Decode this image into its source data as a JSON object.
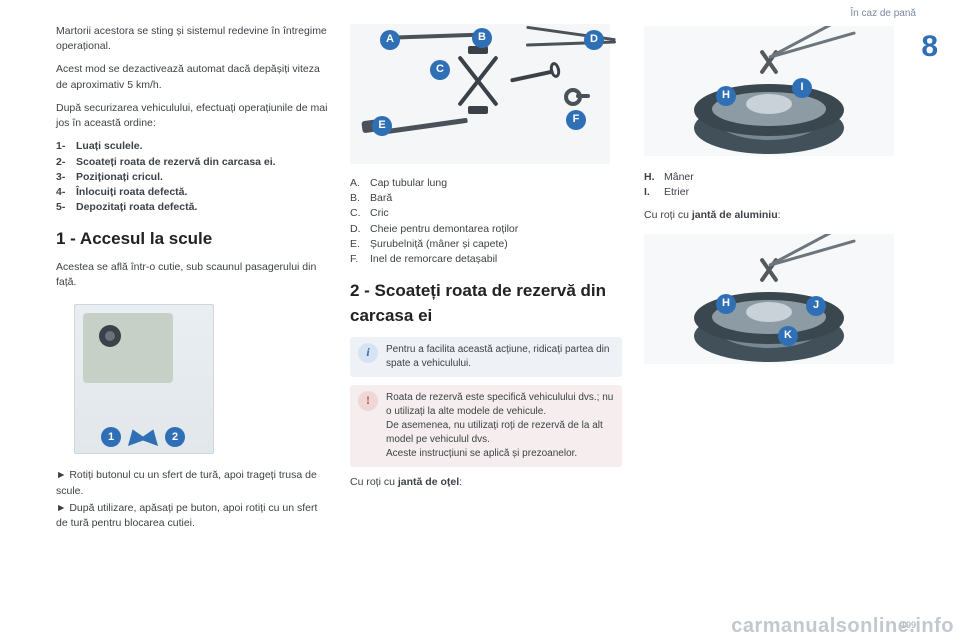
{
  "header": {
    "section": "În caz de pană"
  },
  "page_number_large": "8",
  "page_number_small": "199",
  "watermark": "carmanualsonline.info",
  "col1": {
    "p1": "Martorii acestora se sting și sistemul redevine în întregime operațional.",
    "p2": "Acest mod se dezactivează automat dacă depășiți viteza de aproximativ 5 km/h.",
    "p3": "După securizarea vehiculului, efectuați operațiunile de mai jos în această ordine:",
    "steps": [
      {
        "n": "1-",
        "t": "Luați sculele."
      },
      {
        "n": "2-",
        "t": "Scoateți roata de rezervă din carcasa ei."
      },
      {
        "n": "3-",
        "t": "Poziționați cricul."
      },
      {
        "n": "4-",
        "t": "Înlocuiți roata defectă."
      },
      {
        "n": "5-",
        "t": "Depozitați roata defectă."
      }
    ],
    "h1": "1 - Accesul la scule",
    "p4": "Acestea se află într-o cutie, sub scaunul pasagerului din față.",
    "illus": {
      "b1": "1",
      "b2": "2"
    },
    "b1": "Rotiți butonul cu un sfert de tură, apoi trageți trusa de scule.",
    "b2": "După utilizare, apăsați pe buton, apoi rotiți cu un sfert de tură pentru blocarea cutiei."
  },
  "col2": {
    "illus_labels": {
      "A": "A",
      "B": "B",
      "C": "C",
      "D": "D",
      "E": "E",
      "F": "F"
    },
    "list": [
      {
        "l": "A.",
        "t": "Cap tubular lung"
      },
      {
        "l": "B.",
        "t": "Bară"
      },
      {
        "l": "C.",
        "t": "Cric"
      },
      {
        "l": "D.",
        "t": "Cheie pentru demontarea roților"
      },
      {
        "l": "E.",
        "t": "Șurubelniță (mâner și capete)"
      },
      {
        "l": "F.",
        "t": "Inel de remorcare detașabil"
      }
    ],
    "h2": "2 - Scoateți roata de rezervă din carcasa ei",
    "info": "Pentru a facilita această acțiune, ridicați partea din spate a vehiculului.",
    "warn_l1": "Roata de rezervă este specifică vehiculului dvs.; nu o utilizați la alte modele de vehicule.",
    "warn_l2": "De asemenea, nu utilizați roți de rezervă de la alt model pe vehiculul dvs.",
    "warn_l3": "Aceste instrucțiuni se aplică și prezoanelor.",
    "p_after_pre": "Cu roți cu ",
    "p_after_bold": "jantă de oțel",
    "p_after_post": ":"
  },
  "col3": {
    "top_labels": {
      "H": "H",
      "I": "I"
    },
    "list_top": [
      {
        "l": "H.",
        "t": "Mâner"
      },
      {
        "l": "I.",
        "t": "Etrier"
      }
    ],
    "p_alu_pre": "Cu roți cu ",
    "p_alu_bold": "jantă de aluminiu",
    "p_alu_post": ":",
    "bottom_labels": {
      "H": "H",
      "J": "J",
      "K": "K"
    }
  },
  "style": {
    "brand_blue": "#2e6fb5",
    "body_text": "#3d4248",
    "muted": "#7a8aa0",
    "background": "#ffffff"
  }
}
